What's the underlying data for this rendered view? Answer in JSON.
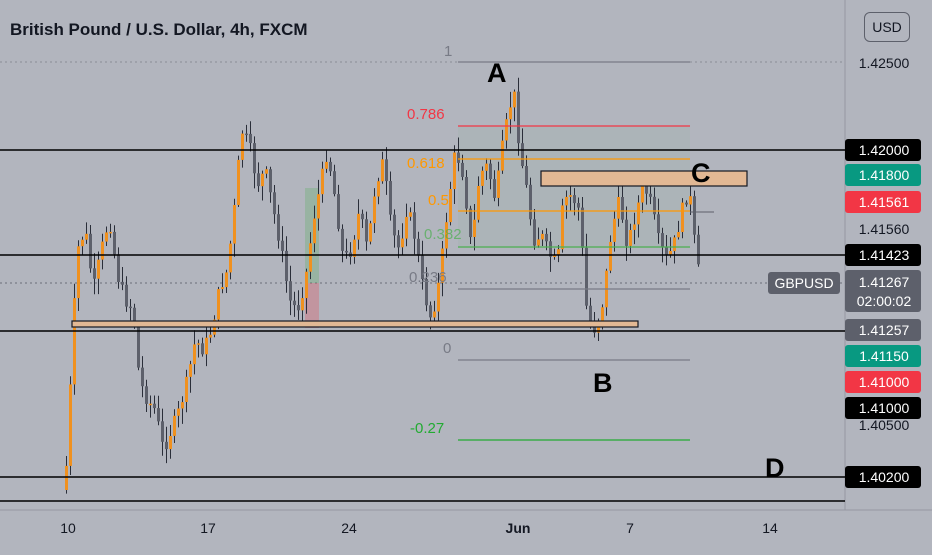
{
  "header": {
    "title": "British Pound / U.S. Dollar, 4h, FXCM",
    "currency_button": "USD"
  },
  "colors": {
    "background": "#b2b5be",
    "bull": "#f0911f",
    "bear": "#5d606b",
    "wick": "#2a2e39",
    "fib_786": "#f23645",
    "fib_618": "#ff9800",
    "fib_382": "#4caf50",
    "fib_neg": "#22ab32",
    "zone": "#e2b894"
  },
  "chart_data": {
    "type": "candlestick",
    "symbol": "GBPUSD",
    "timeframe": "4h",
    "ylim": [
      1.399,
      1.4265
    ],
    "x_ticks": [
      "10",
      "17",
      "24",
      "Jun",
      "7",
      "14"
    ],
    "price_ticks": [
      "1.42500",
      "1.40500"
    ],
    "fib_levels": [
      {
        "label": "1",
        "price": 1.4249
      },
      {
        "label": "0.786",
        "price": 1.4222
      },
      {
        "label": "0.618",
        "price": 1.4198
      },
      {
        "label": "0.5",
        "price": 1.4171
      },
      {
        "label": "0.382",
        "price": 1.4152
      },
      {
        "label": "0.236",
        "price": 1.4129
      },
      {
        "label": "0",
        "price": 1.4106
      },
      {
        "label": "-0.27",
        "price": 1.4063
      }
    ],
    "horizontal_lines": [
      1.42,
      1.41423,
      1.41257,
      1.402
    ],
    "pattern_points": [
      "A",
      "B",
      "C",
      "D"
    ],
    "price_labels": [
      {
        "text": "1.42000",
        "style": "black"
      },
      {
        "text": "1.41800",
        "style": "green"
      },
      {
        "text": "1.41561",
        "style": "red"
      },
      {
        "text": "1.41560",
        "style": "plain"
      },
      {
        "text": "1.41423",
        "style": "black"
      },
      {
        "text": "GBPUSD",
        "style": "gray"
      },
      {
        "text": "1.41267",
        "style": "gray"
      },
      {
        "text": "02:00:02",
        "style": "gray"
      },
      {
        "text": "1.41257",
        "style": "gray"
      },
      {
        "text": "1.41150",
        "style": "green"
      },
      {
        "text": "1.41000",
        "style": "red"
      },
      {
        "text": "1.41000",
        "style": "black"
      },
      {
        "text": "1.40200",
        "style": "black"
      }
    ]
  }
}
